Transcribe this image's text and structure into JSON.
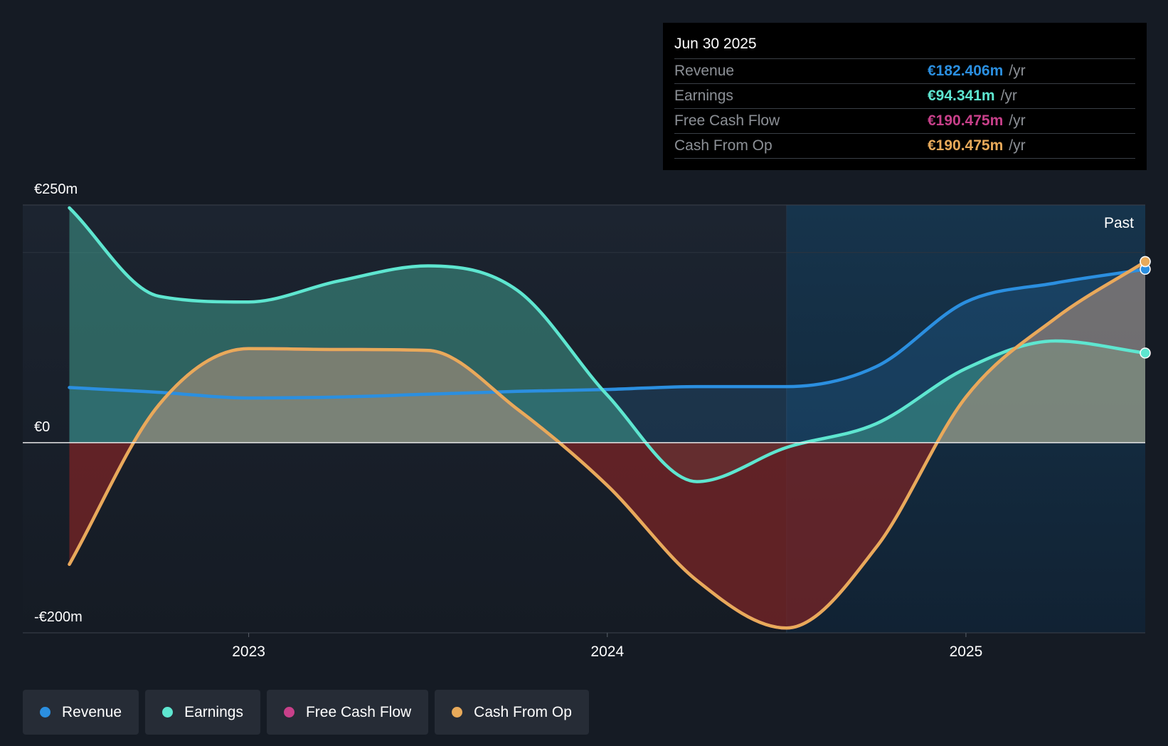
{
  "tooltip": {
    "date": "Jun 30 2025",
    "unit": "/yr",
    "rows": [
      {
        "name": "Revenue",
        "value": "€182.406m"
      },
      {
        "name": "Earnings",
        "value": "€94.341m"
      },
      {
        "name": "Free Cash Flow",
        "value": "€190.475m"
      },
      {
        "name": "Cash From Op",
        "value": "€190.475m"
      }
    ]
  },
  "legend": [
    {
      "label": "Revenue",
      "color": "#2b8fe0"
    },
    {
      "label": "Earnings",
      "color": "#5ee6d0"
    },
    {
      "label": "Free Cash Flow",
      "color": "#c8408a"
    },
    {
      "label": "Cash From Op",
      "color": "#e8aa5a"
    }
  ],
  "colors": {
    "revenue": "#2b8fe0",
    "earnings": "#5ee6d0",
    "fcf": "#c8408a",
    "cfo": "#e8aa5a",
    "background": "#151b24",
    "negative_fill": "#7a2426"
  },
  "chart_data": {
    "type": "area",
    "title": "",
    "y_labels": [
      "€250m",
      "€0",
      "-€200m"
    ],
    "ylim": [
      -200,
      250
    ],
    "x_ticks": [
      {
        "label": "2023",
        "x": 2023.0
      },
      {
        "label": "2024",
        "x": 2024.0
      },
      {
        "label": "2025",
        "x": 2025.0
      }
    ],
    "xlim": [
      2022.37,
      2025.5
    ],
    "past_label": "Past",
    "past_start": 2024.5,
    "series": [
      {
        "name": "Revenue",
        "key": "revenue",
        "points": [
          [
            2022.5,
            58
          ],
          [
            2022.75,
            53
          ],
          [
            2023.0,
            47
          ],
          [
            2023.25,
            48
          ],
          [
            2023.5,
            51
          ],
          [
            2023.75,
            54
          ],
          [
            2024.0,
            56
          ],
          [
            2024.25,
            59
          ],
          [
            2024.5,
            59
          ],
          [
            2024.75,
            80
          ],
          [
            2025.0,
            148
          ],
          [
            2025.25,
            168
          ],
          [
            2025.5,
            182.4
          ]
        ]
      },
      {
        "name": "Earnings",
        "key": "earnings",
        "points": [
          [
            2022.5,
            247
          ],
          [
            2022.75,
            154
          ],
          [
            2023.0,
            148
          ],
          [
            2023.25,
            170
          ],
          [
            2023.5,
            186
          ],
          [
            2023.75,
            160
          ],
          [
            2024.0,
            50
          ],
          [
            2024.25,
            -41
          ],
          [
            2024.5,
            -5
          ],
          [
            2024.75,
            20
          ],
          [
            2025.0,
            78
          ],
          [
            2025.25,
            107
          ],
          [
            2025.5,
            94.3
          ]
        ]
      },
      {
        "name": "Free Cash Flow",
        "key": "fcf",
        "points": [
          [
            2022.5,
            -128
          ],
          [
            2022.75,
            40
          ],
          [
            2023.0,
            99
          ],
          [
            2023.25,
            98
          ],
          [
            2023.5,
            97
          ],
          [
            2023.75,
            35
          ],
          [
            2024.0,
            -45
          ],
          [
            2024.25,
            -145
          ],
          [
            2024.5,
            -195
          ],
          [
            2024.75,
            -110
          ],
          [
            2025.0,
            48
          ],
          [
            2025.25,
            131
          ],
          [
            2025.5,
            190.5
          ]
        ]
      },
      {
        "name": "Cash From Op",
        "key": "cfo",
        "points": [
          [
            2022.5,
            -128
          ],
          [
            2022.75,
            40
          ],
          [
            2023.0,
            99
          ],
          [
            2023.25,
            98
          ],
          [
            2023.5,
            97
          ],
          [
            2023.75,
            35
          ],
          [
            2024.0,
            -45
          ],
          [
            2024.25,
            -145
          ],
          [
            2024.5,
            -195
          ],
          [
            2024.75,
            -110
          ],
          [
            2025.0,
            48
          ],
          [
            2025.25,
            131
          ],
          [
            2025.5,
            190.5
          ]
        ]
      }
    ]
  }
}
